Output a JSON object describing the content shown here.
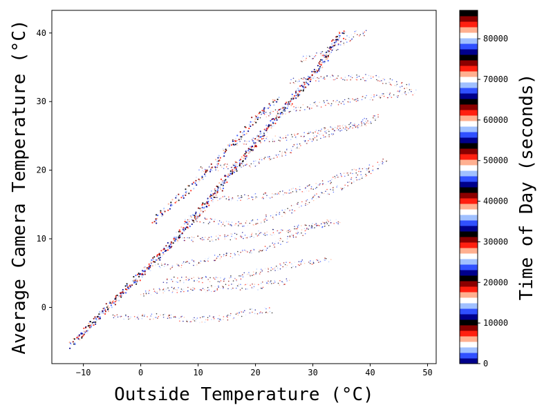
{
  "chart_data": {
    "type": "scatter",
    "title": "",
    "xlabel": "Outside Temperature (°C)",
    "ylabel": "Average Camera Temperature (°C)",
    "colorbar_label": "Time of Day (seconds)",
    "xlim": [
      -15.5,
      51.5
    ],
    "ylim": [
      -8.2,
      43.3
    ],
    "xticks": [
      -10,
      0,
      10,
      20,
      30,
      40,
      50
    ],
    "yticks": [
      0,
      10,
      20,
      30,
      40
    ],
    "colorbar_range": [
      0,
      87000
    ],
    "colorbar_ticks": [
      0,
      10000,
      20000,
      30000,
      40000,
      50000,
      60000,
      70000,
      80000
    ],
    "colormap": "flag-like (blue-white-red-black repeating)",
    "colorbar_colors": [
      "#00008b",
      "#3050ff",
      "#a0c0ff",
      "#ffffff",
      "#ffb090",
      "#ff2010",
      "#8b0000",
      "#000000"
    ],
    "grid": false,
    "legend": "colorbar-right",
    "series": [
      {
        "points": [
          [
            -12.5,
            -5.8
          ],
          [
            -10,
            -3.5
          ],
          [
            -7,
            -1
          ],
          [
            -4,
            1.5
          ],
          [
            -1,
            4
          ],
          [
            2,
            6.5
          ],
          [
            5,
            9
          ],
          [
            8,
            11.5
          ],
          [
            11,
            14.5
          ],
          [
            14,
            17.5
          ],
          [
            17,
            21
          ],
          [
            20,
            24
          ],
          [
            23,
            27
          ],
          [
            26,
            30
          ],
          [
            29,
            33
          ],
          [
            32,
            36
          ],
          [
            34,
            38.5
          ],
          [
            36,
            40.3
          ]
        ]
      },
      {
        "points": [
          [
            -11,
            -4.5
          ],
          [
            -8,
            -2
          ],
          [
            -5,
            0.5
          ],
          [
            -2,
            3
          ],
          [
            1,
            5.5
          ],
          [
            4,
            8
          ],
          [
            7,
            11
          ],
          [
            10,
            14
          ],
          [
            13,
            17
          ],
          [
            16,
            20
          ],
          [
            19,
            23
          ],
          [
            22,
            26
          ],
          [
            25,
            29
          ],
          [
            28,
            32
          ],
          [
            31,
            35
          ],
          [
            33,
            38
          ],
          [
            35,
            40
          ]
        ]
      },
      {
        "points": [
          [
            2,
            12.5
          ],
          [
            4,
            14
          ],
          [
            6,
            15.5
          ],
          [
            8,
            17
          ],
          [
            10,
            18.5
          ],
          [
            12,
            20
          ],
          [
            14,
            22
          ],
          [
            16,
            24
          ],
          [
            18,
            25.5
          ],
          [
            20,
            27.5
          ],
          [
            22,
            29
          ],
          [
            24,
            30.5
          ]
        ]
      },
      {
        "points": [
          [
            3,
            6
          ],
          [
            6,
            6
          ],
          [
            9,
            6.5
          ],
          [
            12,
            7
          ],
          [
            15,
            7.5
          ],
          [
            18,
            8
          ],
          [
            21,
            8.5
          ],
          [
            24,
            9.5
          ],
          [
            27,
            10.5
          ],
          [
            30,
            11.5
          ],
          [
            33,
            12.5
          ]
        ]
      },
      {
        "points": [
          [
            8,
            13
          ],
          [
            12,
            12.5
          ],
          [
            16,
            12
          ],
          [
            20,
            12.5
          ],
          [
            24,
            13.5
          ],
          [
            28,
            15
          ],
          [
            32,
            16.5
          ],
          [
            36,
            18
          ],
          [
            40,
            20
          ],
          [
            43,
            21.5
          ]
        ]
      },
      {
        "points": [
          [
            0,
            2
          ],
          [
            5,
            2.5
          ],
          [
            10,
            2.5
          ],
          [
            15,
            3
          ],
          [
            20,
            3
          ],
          [
            23,
            3.5
          ],
          [
            26,
            3.8
          ]
        ]
      },
      {
        "points": [
          [
            -5,
            -1.5
          ],
          [
            0,
            -1.2
          ],
          [
            5,
            -1.5
          ],
          [
            10,
            -1.8
          ],
          [
            15,
            -1.5
          ],
          [
            20,
            -0.5
          ],
          [
            23,
            -0.5
          ]
        ]
      },
      {
        "points": [
          [
            10,
            20
          ],
          [
            15,
            20.5
          ],
          [
            20,
            21
          ],
          [
            25,
            22.5
          ],
          [
            30,
            24.5
          ],
          [
            35,
            26
          ],
          [
            39,
            27
          ],
          [
            42,
            28
          ]
        ]
      },
      {
        "points": [
          [
            20,
            28
          ],
          [
            25,
            28.5
          ],
          [
            30,
            29.5
          ],
          [
            35,
            30
          ],
          [
            40,
            30.5
          ],
          [
            44,
            31
          ],
          [
            48,
            31.5
          ]
        ]
      },
      {
        "points": [
          [
            26,
            33
          ],
          [
            30,
            33.3
          ],
          [
            35,
            33.5
          ],
          [
            40,
            33.5
          ],
          [
            43,
            33
          ],
          [
            47,
            32
          ]
        ]
      },
      {
        "points": [
          [
            6,
            10
          ],
          [
            12,
            10
          ],
          [
            18,
            10.5
          ],
          [
            24,
            11
          ],
          [
            30,
            12
          ],
          [
            35,
            12.5
          ]
        ]
      },
      {
        "points": [
          [
            12,
            16
          ],
          [
            18,
            16
          ],
          [
            24,
            16.5
          ],
          [
            30,
            17.5
          ],
          [
            36,
            19.5
          ],
          [
            40,
            20.5
          ]
        ]
      },
      {
        "points": [
          [
            16,
            24
          ],
          [
            22,
            24.5
          ],
          [
            28,
            25
          ],
          [
            34,
            26
          ],
          [
            40,
            27
          ]
        ]
      },
      {
        "points": [
          [
            4,
            4
          ],
          [
            10,
            4
          ],
          [
            16,
            4.2
          ],
          [
            22,
            5.5
          ],
          [
            28,
            6.5
          ],
          [
            33,
            7
          ]
        ]
      },
      {
        "points": [
          [
            28,
            36
          ],
          [
            32,
            37
          ],
          [
            36,
            39
          ],
          [
            38,
            40
          ],
          [
            39.5,
            40
          ]
        ]
      }
    ]
  }
}
